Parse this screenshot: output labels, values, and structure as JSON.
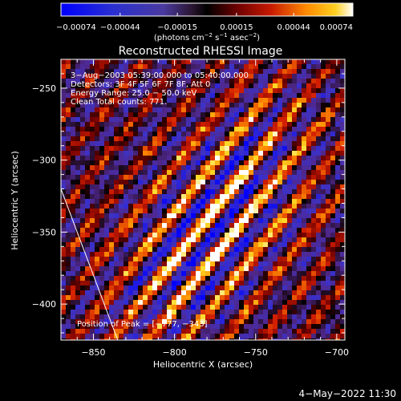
{
  "chart_data": {
    "type": "heatmap",
    "title": "Reconstructed RHESSI Image",
    "xlabel": "Heliocentric X (arcsec)",
    "ylabel": "Heliocentric Y (arcsec)",
    "xlim": [
      -870,
      -695
    ],
    "ylim": [
      -425,
      -230
    ],
    "x_ticks": [
      -850,
      -800,
      -750,
      -700
    ],
    "x_tick_labels": [
      "−850",
      "−800",
      "−750",
      "−700"
    ],
    "y_ticks": [
      -250,
      -300,
      -350,
      -400
    ],
    "y_tick_labels": [
      "−250",
      "−300",
      "−350",
      "−400"
    ],
    "colorbar": {
      "range": [
        -0.00074,
        0.00074
      ],
      "ticks": [
        -0.00074,
        -0.00044,
        -0.00015,
        0.00015,
        0.00044,
        0.00074
      ],
      "tick_labels": [
        "−0.00074",
        "−0.00044",
        "−0.00015",
        "0.00015",
        "0.00044",
        "0.00074"
      ],
      "units_text": "(photons cm",
      "units_exp1": "−2",
      "units_mid": " s",
      "units_exp2": "−1",
      "units_tail": " asec",
      "units_exp3": "−2",
      "units_close": ")"
    },
    "info_lines": [
      "3−Aug−2003 05:39:00.000 to 05:40:00.000",
      "Detectors: 3F 4F 5F 6F 7F 8F, Att 0",
      "Energy Range: 25.0 − 50.0 keV",
      "Clean     Total counts: 771."
    ],
    "peak_label": "Position of Peak = [−777, −343]",
    "peak": [
      -777,
      -343
    ],
    "limb_points": [
      [
        -870,
        -320
      ],
      [
        -835,
        -425
      ]
    ]
  },
  "footer": {
    "timestamp": "4−May−2022 11:30"
  }
}
